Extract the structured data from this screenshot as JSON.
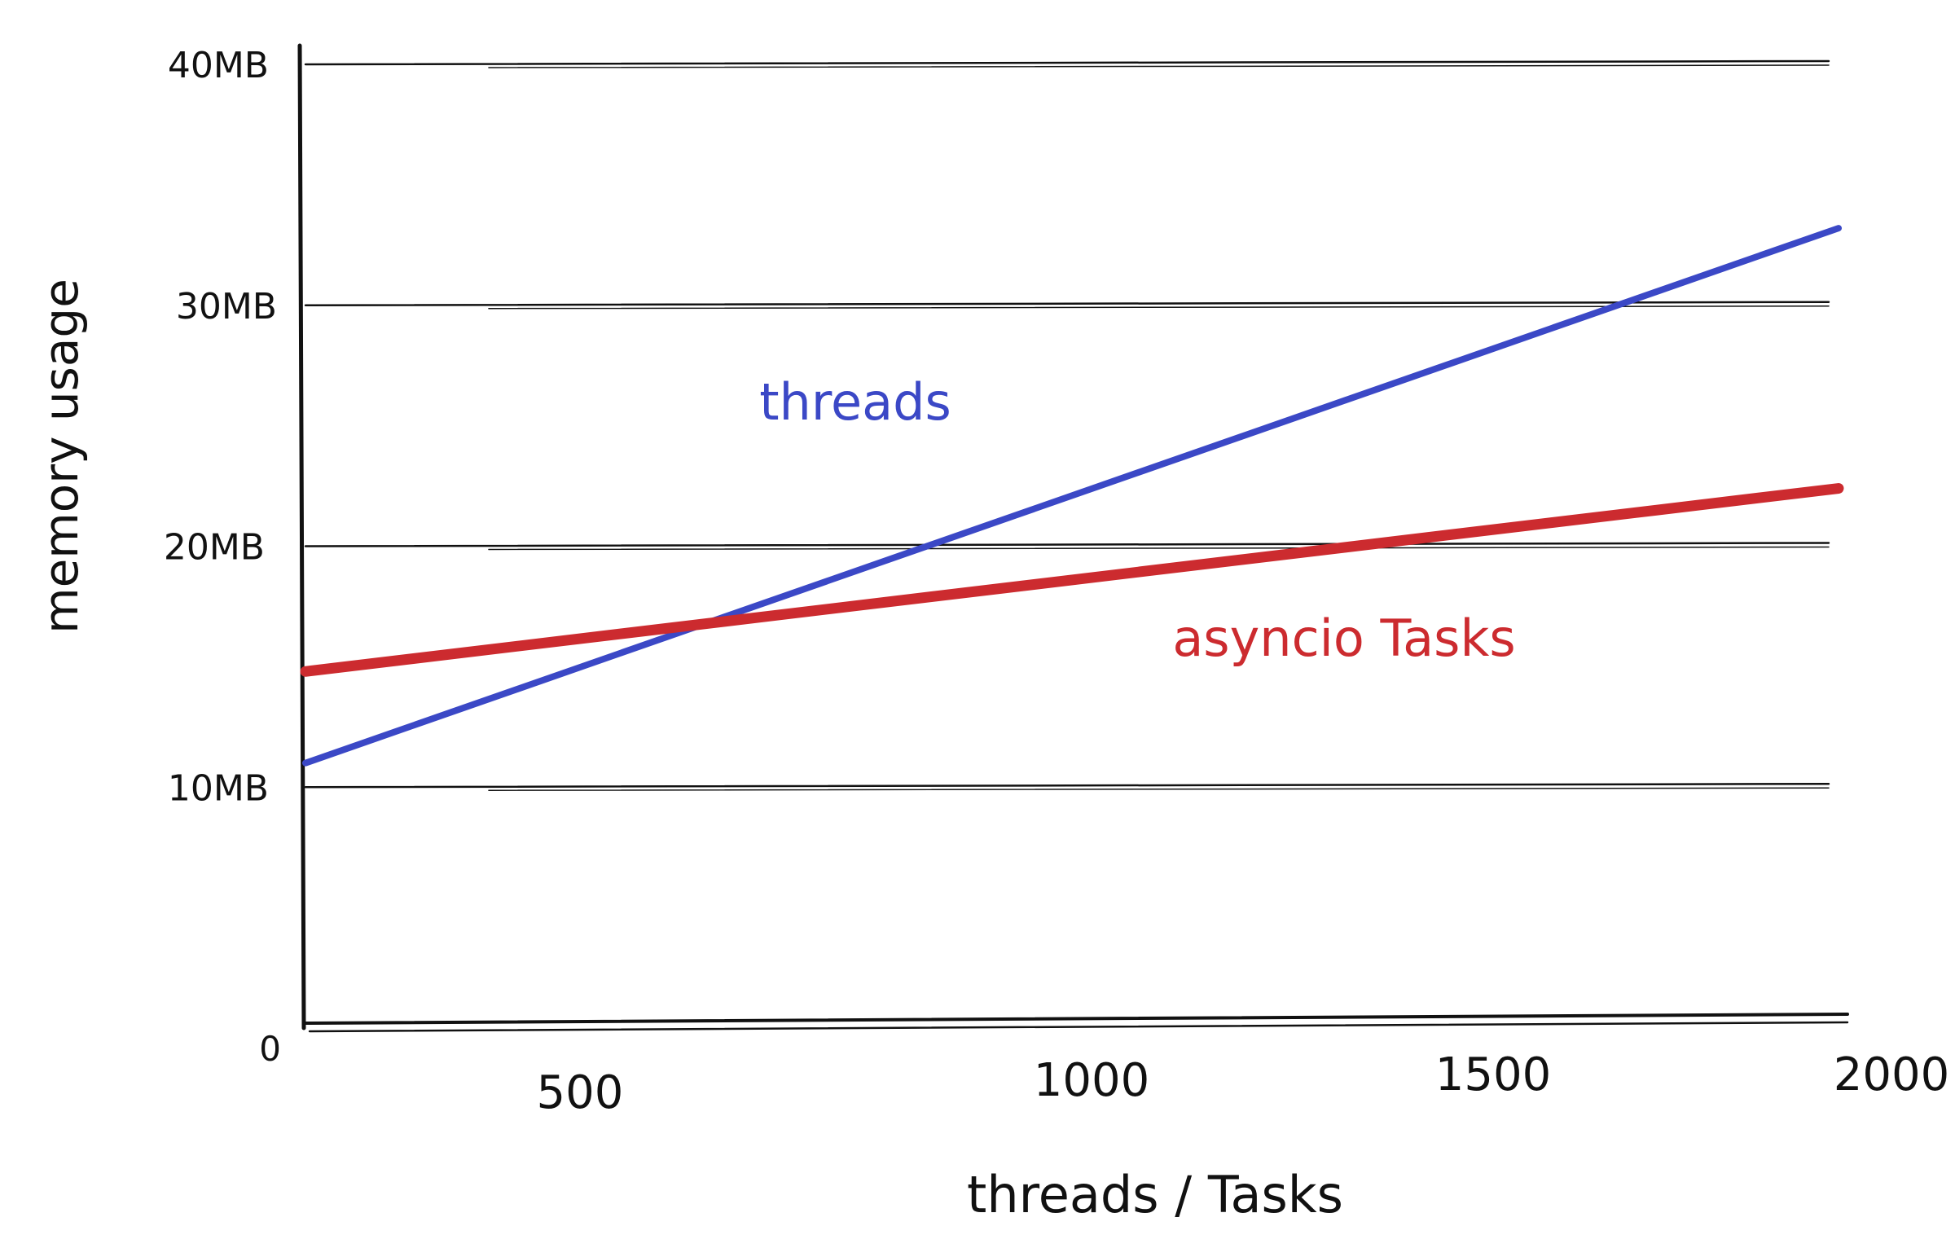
{
  "chart_data": {
    "type": "line",
    "title": "",
    "xlabel": "threads / Tasks",
    "ylabel": "memory usage",
    "x_ticks": [
      {
        "value": 500,
        "label": "500"
      },
      {
        "value": 1000,
        "label": "1000"
      },
      {
        "value": 1500,
        "label": "1500"
      },
      {
        "value": 2000,
        "label": "2000"
      }
    ],
    "y_ticks": [
      {
        "value": 0,
        "label": "0"
      },
      {
        "value": 10,
        "label": "10MB"
      },
      {
        "value": 20,
        "label": "20MB"
      },
      {
        "value": 30,
        "label": "30MB"
      },
      {
        "value": 40,
        "label": "40MB"
      }
    ],
    "xlim": [
      0,
      2000
    ],
    "ylim": [
      0,
      40
    ],
    "grid": true,
    "series": [
      {
        "name": "threads",
        "color": "#3b48c6",
        "x": [
          0,
          2000
        ],
        "y": [
          11.0,
          33.2
        ]
      },
      {
        "name": "asyncio Tasks",
        "color": "#cc2b2f",
        "x": [
          0,
          2000
        ],
        "y": [
          14.8,
          22.4
        ]
      }
    ]
  }
}
